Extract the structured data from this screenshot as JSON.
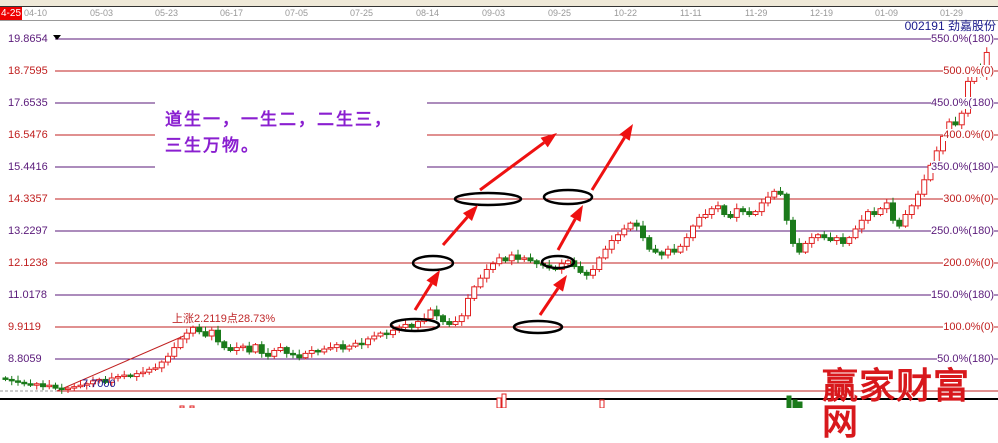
{
  "header": {
    "current_date": "4-25",
    "dates": [
      "04-10",
      "05-03",
      "05-23",
      "06-17",
      "07-05",
      "07-25",
      "08-14",
      "09-03",
      "09-25",
      "10-22",
      "11-11",
      "11-29",
      "12-19",
      "01-09",
      "01-29"
    ]
  },
  "stock": {
    "code_name": "002191  劲嘉股份"
  },
  "annotation": {
    "line1": "道生一，一生二，二生三，",
    "line2": "三生万物。"
  },
  "gain_label": "上涨2.2119点28.73%",
  "base_label": "7.7000",
  "watermark": "赢家财富网",
  "colors": {
    "up": "#e02020",
    "down": "#1a7a1a",
    "purple_line": "#5a1a7a",
    "red_line": "#c02020",
    "arrow": "#ee1111"
  },
  "chart_data": {
    "type": "candlestick",
    "price_levels": [
      "19.8654",
      "18.7595",
      "17.6535",
      "16.5476",
      "15.4416",
      "14.3357",
      "13.2297",
      "12.1238",
      "11.0178",
      "9.9119",
      "8.8059"
    ],
    "percent_levels": [
      "550.0%(180)",
      "500.0%(0)",
      "450.0%(180)",
      "400.0%(0)",
      "350.0%(180)",
      "300.0%(0)",
      "250.0%(180)",
      "200.0%(0)",
      "150.0%(180)",
      "100.0%(0)",
      "50.0%(180)"
    ],
    "ylim": [
      7.7,
      19.8654
    ],
    "closes": [
      8.1,
      8.05,
      8.0,
      7.95,
      7.9,
      7.95,
      7.85,
      7.9,
      7.8,
      7.75,
      7.8,
      7.85,
      7.9,
      7.95,
      8.05,
      8.1,
      8.0,
      8.15,
      8.2,
      8.25,
      8.2,
      8.3,
      8.35,
      8.45,
      8.5,
      8.7,
      8.9,
      9.2,
      9.5,
      9.7,
      9.9,
      9.75,
      9.6,
      9.8,
      9.4,
      9.2,
      9.1,
      9.2,
      9.25,
      9.05,
      9.3,
      9.0,
      8.9,
      9.1,
      9.2,
      9.0,
      8.95,
      8.85,
      9.0,
      9.1,
      9.05,
      9.15,
      9.2,
      9.3,
      9.15,
      9.25,
      9.35,
      9.3,
      9.5,
      9.6,
      9.7,
      9.65,
      9.8,
      9.9,
      10.0,
      9.9,
      10.1,
      10.2,
      10.5,
      10.3,
      10.1,
      10.0,
      10.1,
      10.3,
      10.9,
      11.3,
      11.6,
      11.9,
      12.1,
      12.3,
      12.2,
      12.4,
      12.25,
      12.3,
      12.2,
      12.1,
      12.05,
      11.95,
      11.9,
      12.1,
      12.2,
      12.0,
      11.8,
      11.7,
      11.9,
      12.3,
      12.6,
      12.9,
      13.1,
      13.3,
      13.5,
      13.4,
      13.0,
      12.6,
      12.5,
      12.4,
      12.6,
      12.5,
      12.7,
      13.0,
      13.4,
      13.7,
      13.8,
      14.0,
      14.1,
      13.8,
      13.7,
      14.0,
      13.9,
      13.8,
      13.9,
      14.2,
      14.4,
      14.6,
      14.5,
      13.6,
      12.8,
      12.5,
      12.8,
      13.0,
      13.1,
      13.0,
      12.9,
      13.0,
      12.8,
      13.0,
      13.3,
      13.6,
      13.9,
      13.8,
      14.0,
      14.2,
      13.6,
      13.4,
      13.8,
      14.1,
      14.5,
      15.0,
      15.5,
      16.0,
      16.5,
      17.0,
      16.9,
      17.3,
      18.4,
      18.9,
      18.6,
      19.4
    ]
  }
}
